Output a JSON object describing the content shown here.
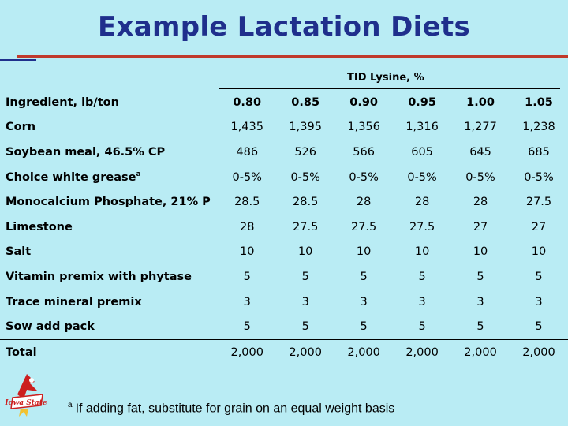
{
  "title": "Example Lactation Diets",
  "table": {
    "group_header": "TID Lysine, %",
    "ingredient_header": "Ingredient, lb/ton",
    "columns": [
      "0.80",
      "0.85",
      "0.90",
      "0.95",
      "1.00",
      "1.05"
    ],
    "rows": [
      {
        "name": "Corn",
        "sup": "",
        "values": [
          "1,435",
          "1,395",
          "1,356",
          "1,316",
          "1,277",
          "1,238"
        ]
      },
      {
        "name": "Soybean meal, 46.5% CP",
        "sup": "",
        "values": [
          "486",
          "526",
          "566",
          "605",
          "645",
          "685"
        ]
      },
      {
        "name": "Choice white grease",
        "sup": "a",
        "values": [
          "0-5%",
          "0-5%",
          "0-5%",
          "0-5%",
          "0-5%",
          "0-5%"
        ]
      },
      {
        "name": "Monocalcium Phosphate, 21% P",
        "sup": "",
        "values": [
          "28.5",
          "28.5",
          "28",
          "28",
          "28",
          "27.5"
        ]
      },
      {
        "name": "Limestone",
        "sup": "",
        "values": [
          "28",
          "27.5",
          "27.5",
          "27.5",
          "27",
          "27"
        ]
      },
      {
        "name": "Salt",
        "sup": "",
        "values": [
          "10",
          "10",
          "10",
          "10",
          "10",
          "10"
        ]
      },
      {
        "name": "Vitamin premix with phytase",
        "sup": "",
        "values": [
          "5",
          "5",
          "5",
          "5",
          "5",
          "5"
        ]
      },
      {
        "name": "Trace mineral premix",
        "sup": "",
        "values": [
          "3",
          "3",
          "3",
          "3",
          "3",
          "3"
        ]
      },
      {
        "name": "Sow add pack",
        "sup": "",
        "values": [
          "5",
          "5",
          "5",
          "5",
          "5",
          "5"
        ]
      },
      {
        "name": "Total",
        "sup": "",
        "values": [
          "2,000",
          "2,000",
          "2,000",
          "2,000",
          "2,000",
          "2,000"
        ]
      }
    ]
  },
  "footnote": {
    "marker": "a",
    "text": "If adding fat, substitute for grain on an equal weight basis"
  },
  "logo": {
    "text": "Iowa State"
  },
  "colors": {
    "background": "#b9ecf4",
    "title": "#1f2f8c",
    "rule": "#c0392b",
    "logo_red": "#cc1f1f",
    "logo_gold": "#f2c230"
  }
}
